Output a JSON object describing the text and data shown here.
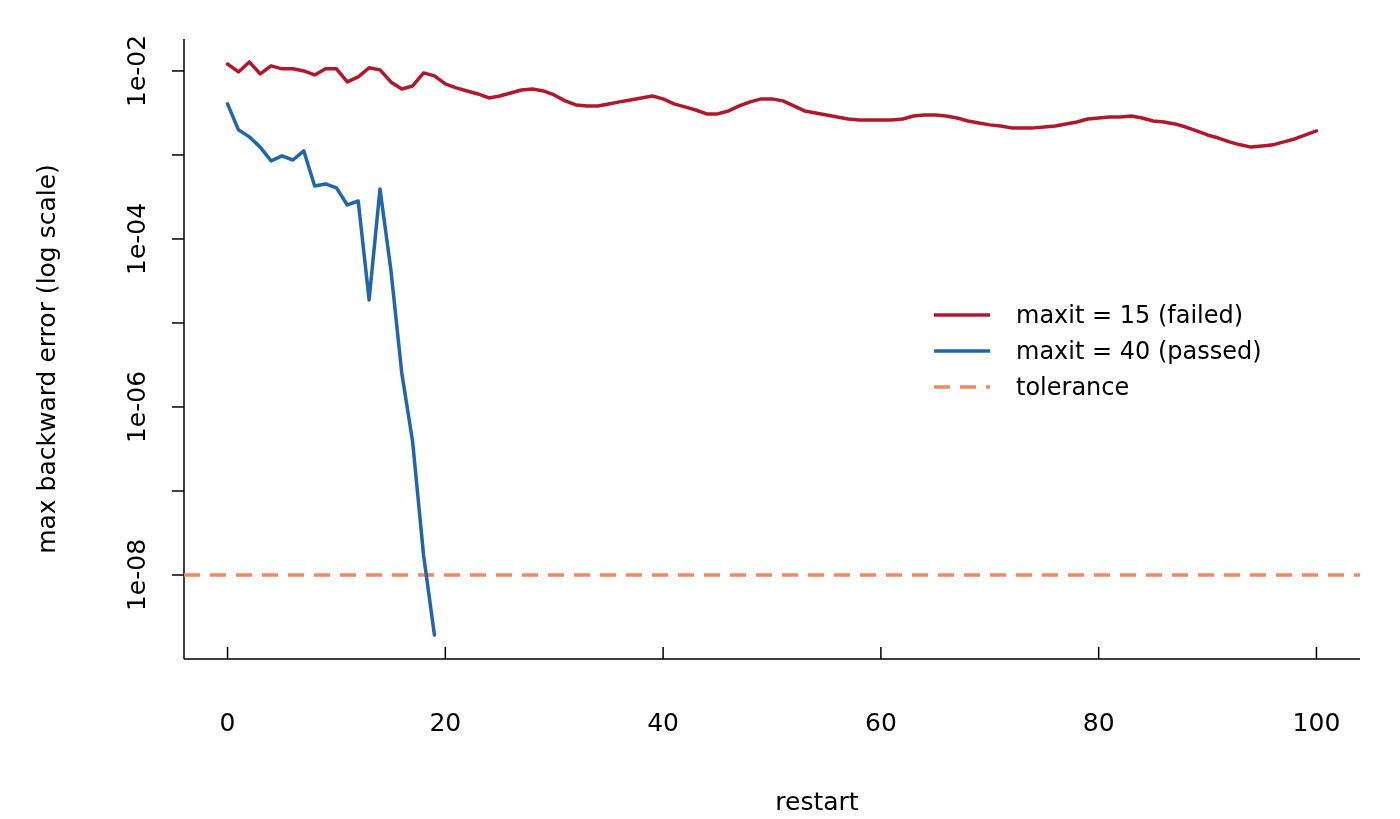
{
  "chart_data": {
    "type": "line",
    "xlabel": "restart",
    "ylabel": "max backward error (log scale)",
    "xlim": [
      -4,
      104
    ],
    "ylim": [
      1e-09,
      0.024
    ],
    "log": "y",
    "grid": false,
    "legend": "right",
    "marker": "none",
    "line_style": "solid",
    "xticks": [
      0,
      20,
      40,
      60,
      80,
      100
    ],
    "yticks": [
      {
        "value": 1e-08,
        "label": "1e-08"
      },
      {
        "value": 1e-07,
        "label": null
      },
      {
        "value": 1e-06,
        "label": "1e-06"
      },
      {
        "value": 1e-05,
        "label": null
      },
      {
        "value": 0.0001,
        "label": "1e-04"
      },
      {
        "value": 0.001,
        "label": null
      },
      {
        "value": 0.01,
        "label": "1e-02"
      }
    ],
    "series": [
      {
        "name": "maxit = 15 (failed)",
        "color": "#b2182b",
        "x": [
          0,
          1,
          2,
          3,
          4,
          5,
          6,
          7,
          8,
          9,
          10,
          11,
          12,
          13,
          14,
          15,
          16,
          17,
          18,
          19,
          20,
          21,
          22,
          23,
          24,
          25,
          26,
          27,
          28,
          29,
          30,
          31,
          32,
          33,
          34,
          35,
          36,
          37,
          38,
          39,
          40,
          41,
          42,
          43,
          44,
          45,
          46,
          47,
          48,
          49,
          50,
          51,
          52,
          53,
          54,
          55,
          56,
          57,
          58,
          59,
          60,
          61,
          62,
          63,
          64,
          65,
          66,
          67,
          68,
          69,
          70,
          71,
          72,
          73,
          74,
          75,
          76,
          77,
          78,
          79,
          80,
          81,
          82,
          83,
          84,
          85,
          86,
          87,
          88,
          89,
          90,
          91,
          92,
          93,
          94,
          95,
          96,
          97,
          98,
          99,
          100
        ],
        "values": [
          0.0121,
          0.00973,
          0.0128,
          0.00921,
          0.0115,
          0.0106,
          0.0106,
          0.01,
          0.00896,
          0.0106,
          0.0106,
          0.0074,
          0.00849,
          0.0109,
          0.0103,
          0.0074,
          0.0061,
          0.00662,
          0.00947,
          0.00872,
          0.007,
          0.00628,
          0.00578,
          0.00532,
          0.00477,
          0.00504,
          0.00547,
          0.00594,
          0.0061,
          0.00578,
          0.00518,
          0.0044,
          0.00394,
          0.00383,
          0.00383,
          0.00405,
          0.00428,
          0.00452,
          0.00477,
          0.00504,
          0.00465,
          0.00405,
          0.00373,
          0.00343,
          0.00308,
          0.00308,
          0.00334,
          0.00383,
          0.00428,
          0.00465,
          0.00465,
          0.0044,
          0.00383,
          0.00334,
          0.00316,
          0.00299,
          0.00283,
          0.00268,
          0.00261,
          0.00261,
          0.00261,
          0.00261,
          0.00268,
          0.00291,
          0.00299,
          0.00299,
          0.00291,
          0.00275,
          0.00254,
          0.0024,
          0.00228,
          0.00221,
          0.0021,
          0.0021,
          0.0021,
          0.00215,
          0.00221,
          0.00234,
          0.00247,
          0.00268,
          0.00275,
          0.00283,
          0.00283,
          0.00291,
          0.00275,
          0.00254,
          0.00247,
          0.00234,
          0.00215,
          0.00193,
          0.00173,
          0.00159,
          0.00143,
          0.00132,
          0.00124,
          0.00128,
          0.00132,
          0.00143,
          0.00155,
          0.00173,
          0.00193
        ]
      },
      {
        "name": "maxit = 40 (passed)",
        "color": "#2166ac",
        "x": [
          0,
          1,
          2,
          3,
          4,
          5,
          6,
          7,
          8,
          9,
          10,
          11,
          12,
          13,
          14,
          15,
          16,
          17,
          18,
          19
        ],
        "values": [
          0.00405,
          0.00199,
          0.00164,
          0.00124,
          0.000849,
          0.000973,
          0.000871,
          0.00112,
          0.000428,
          0.000452,
          0.000405,
          0.000254,
          0.000283,
          1.88e-05,
          0.000394,
          4.28e-05,
          2.54e-06,
          3.83e-07,
          1.73e-08,
          1.93e-09
        ]
      }
    ],
    "ref_lines": [
      {
        "axis": "y",
        "value": 1e-08,
        "label": "tolerance",
        "color": "#ef8a62",
        "line_style": "dashed"
      }
    ]
  }
}
